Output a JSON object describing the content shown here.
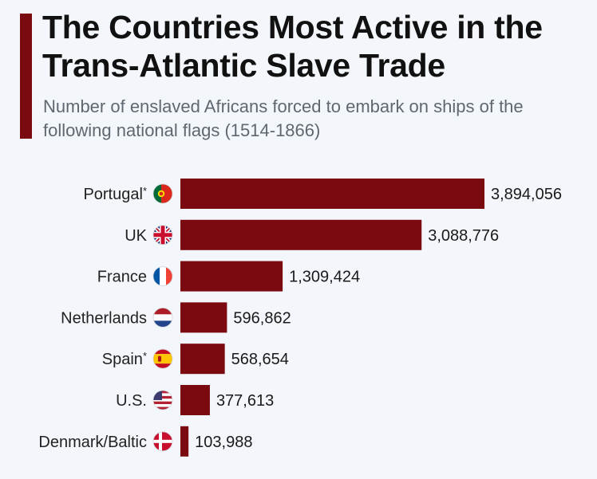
{
  "header": {
    "title": "The Countries Most Active in the Trans-Atlantic Slave Trade",
    "subtitle": "Number of enslaved Africans forced to embark on ships of the following national flags (1514-1866)"
  },
  "colors": {
    "accent": "#7a0a10",
    "bar": "#7a0a10",
    "background": "#f3f6fa"
  },
  "chart_data": {
    "type": "bar",
    "orientation": "horizontal",
    "title": "The Countries Most Active in the Trans-Atlantic Slave Trade",
    "subtitle": "Number of enslaved Africans forced to embark on ships of the following national flags (1514-1866)",
    "xlabel": "",
    "ylabel": "",
    "grid": false,
    "categories": [
      "Portugal*",
      "UK",
      "France",
      "Netherlands",
      "Spain*",
      "U.S.",
      "Denmark/Baltic"
    ],
    "values": [
      3894056,
      3088776,
      1309424,
      596862,
      568654,
      377613,
      103988
    ],
    "value_labels": [
      "3,894,056",
      "3,088,776",
      "1,309,424",
      "596,862",
      "568,654",
      "377,613",
      "103,988"
    ],
    "flag_icons": [
      "portugal-flag-icon",
      "uk-flag-icon",
      "france-flag-icon",
      "netherlands-flag-icon",
      "spain-flag-icon",
      "us-flag-icon",
      "denmark-flag-icon"
    ]
  }
}
